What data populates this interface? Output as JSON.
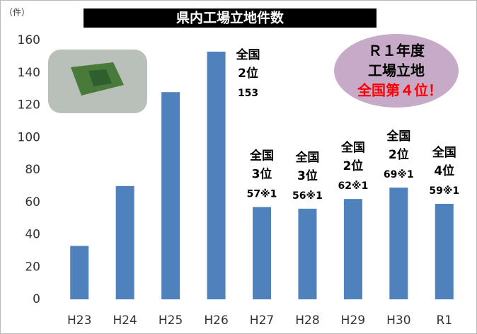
{
  "chart_data": {
    "type": "bar",
    "title": "県内工場立地件数",
    "y_unit": "（件）",
    "categories": [
      "H23",
      "H24",
      "H25",
      "H26",
      "H27",
      "H28",
      "H29",
      "H30",
      "R1"
    ],
    "values": [
      33,
      70,
      128,
      153,
      57,
      56,
      62,
      69,
      59
    ],
    "value_labels": [
      null,
      null,
      null,
      "153",
      "57※1",
      "56※1",
      "62※1",
      "69※1",
      "59※1"
    ],
    "rank_labels": [
      null,
      null,
      null,
      [
        "全国",
        "2位"
      ],
      [
        "全国",
        "3位"
      ],
      [
        "全国",
        "3位"
      ],
      [
        "全国",
        "2位"
      ],
      [
        "全国",
        "2位"
      ],
      [
        "全国",
        "4位"
      ]
    ],
    "color": "#4f81bd",
    "ylim": [
      0,
      160
    ],
    "yticks": [
      0,
      20,
      40,
      60,
      80,
      100,
      120,
      140,
      160
    ],
    "callout": [
      "Ｒ１年度",
      "工場立地",
      "全国第４位！"
    ]
  }
}
